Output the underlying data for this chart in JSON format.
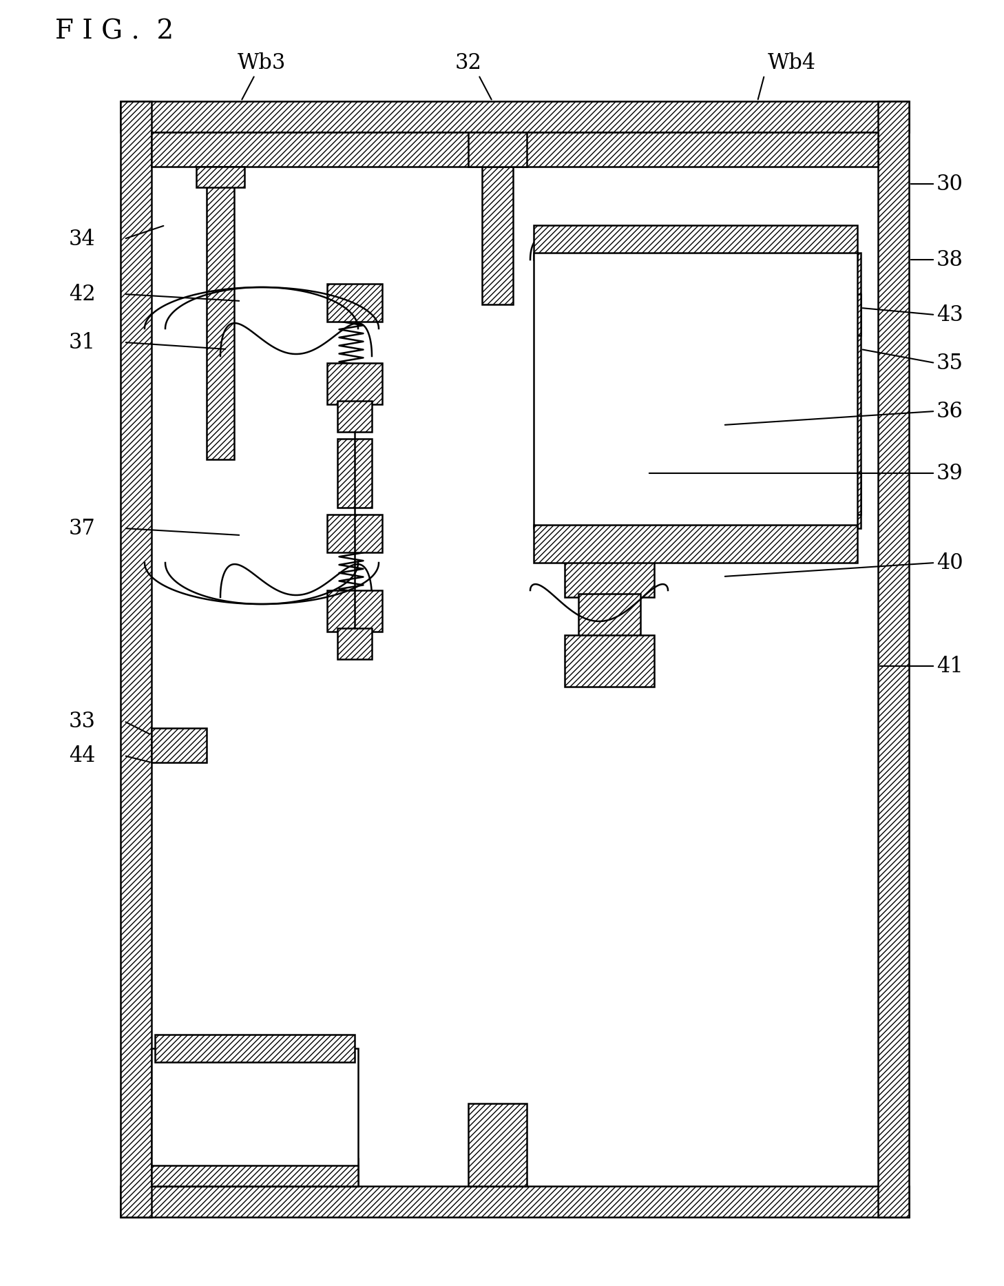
{
  "title": "F I G .  2",
  "bg_color": "#ffffff",
  "line_color": "#000000",
  "hatch_color": "#000000",
  "labels": {
    "fig": "F I G .  2",
    "Wb3": "Wb3",
    "Wb4": "Wb4",
    "30": "30",
    "31": "31",
    "32": "32",
    "33": "33",
    "34": "34",
    "35": "35",
    "36": "36",
    "37": "37",
    "38": "38",
    "39": "39",
    "40": "40",
    "41": "41",
    "42": "42",
    "43": "43",
    "44": "44"
  }
}
